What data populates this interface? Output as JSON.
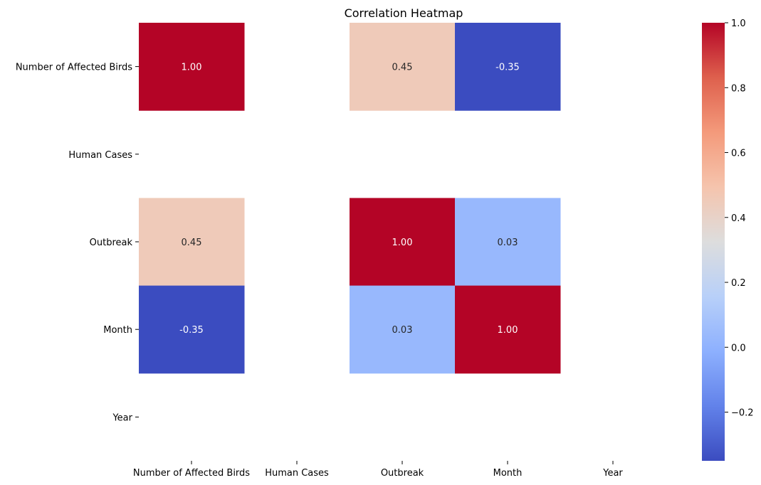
{
  "chart_data": {
    "type": "heatmap",
    "title": "Correlation Heatmap",
    "x_labels": [
      "Number of Affected Birds",
      "Human Cases",
      "Outbreak",
      "Month",
      "Year"
    ],
    "y_labels": [
      "Number of Affected Birds",
      "Human Cases",
      "Outbreak",
      "Month",
      "Year"
    ],
    "values": [
      [
        1.0,
        null,
        0.45,
        -0.35,
        null
      ],
      [
        null,
        null,
        null,
        null,
        null
      ],
      [
        0.45,
        null,
        1.0,
        0.03,
        null
      ],
      [
        -0.35,
        null,
        0.03,
        1.0,
        null
      ],
      [
        null,
        null,
        null,
        null,
        null
      ]
    ],
    "cell_labels": [
      [
        "1.00",
        "",
        "0.45",
        "-0.35",
        ""
      ],
      [
        "",
        "",
        "",
        "",
        ""
      ],
      [
        "0.45",
        "",
        "1.00",
        "0.03",
        ""
      ],
      [
        "-0.35",
        "",
        "0.03",
        "1.00",
        ""
      ],
      [
        "",
        "",
        "",
        "",
        ""
      ]
    ],
    "colormap": "coolwarm",
    "vmin": -0.35,
    "vmax": 1.0,
    "colorbar_ticks": [
      1.0,
      0.8,
      0.6,
      0.4,
      0.2,
      0.0,
      -0.2
    ],
    "colorbar_tick_labels": [
      "1.0",
      "0.8",
      "0.6",
      "0.4",
      "0.2",
      "0.0",
      "−0.2"
    ],
    "colorbar_placement": "right"
  }
}
